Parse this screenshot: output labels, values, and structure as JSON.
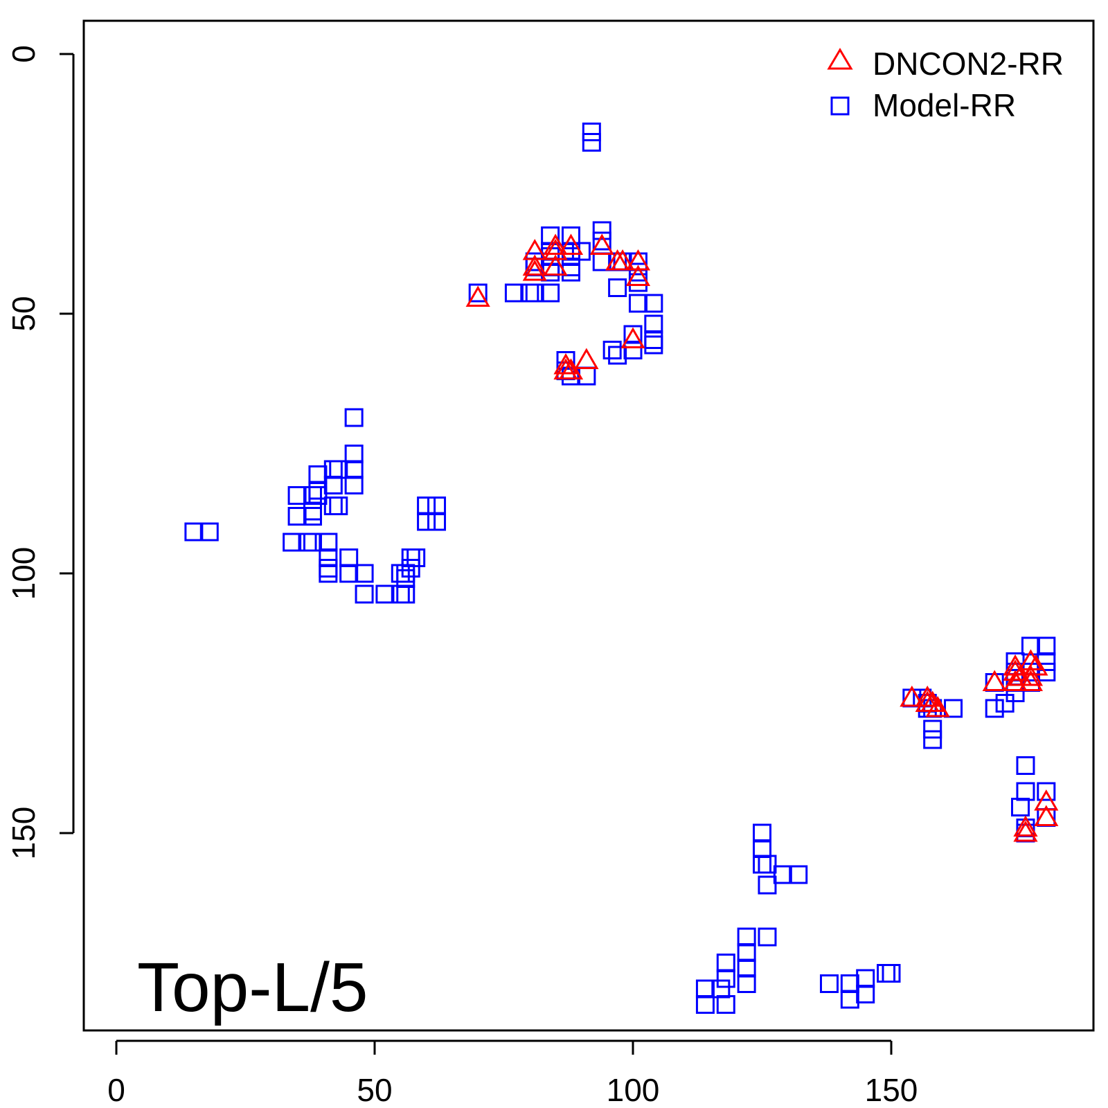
{
  "chart_data": {
    "type": "scatter",
    "title": "",
    "xlabel": "",
    "ylabel": "",
    "annotation": "Top-L/5",
    "xlim": [
      -6,
      189
    ],
    "ylim": [
      0,
      189
    ],
    "y_reversed": true,
    "x_ticks": [
      "0",
      "50",
      "100",
      "150"
    ],
    "x_tick_values": [
      0,
      50,
      100,
      150
    ],
    "y_ticks": [
      "0",
      "50",
      "100",
      "150"
    ],
    "y_tick_values": [
      0,
      50,
      100,
      150
    ],
    "legend_position": "top-right",
    "legend": [
      {
        "label": "DNCON2-RR",
        "marker": "triangle",
        "color": "#ff0000"
      },
      {
        "label": "Model-RR",
        "marker": "square",
        "color": "#0000ff"
      }
    ],
    "series": [
      {
        "name": "DNCON2-RR",
        "marker": "triangle",
        "color": "#ff0000",
        "points": [
          [
            70,
            47
          ],
          [
            81,
            38
          ],
          [
            81,
            41
          ],
          [
            81,
            42
          ],
          [
            85,
            37
          ],
          [
            85,
            38
          ],
          [
            85,
            41
          ],
          [
            88,
            37
          ],
          [
            94,
            37
          ],
          [
            97,
            40
          ],
          [
            98,
            40
          ],
          [
            101,
            40
          ],
          [
            101,
            43
          ],
          [
            100,
            55
          ],
          [
            87,
            60
          ],
          [
            87,
            61
          ],
          [
            88,
            61
          ],
          [
            91,
            59
          ],
          [
            154,
            124
          ],
          [
            157,
            124
          ],
          [
            157,
            125
          ],
          [
            158,
            125
          ],
          [
            159,
            126
          ],
          [
            170,
            121
          ],
          [
            174,
            118
          ],
          [
            174,
            119
          ],
          [
            174,
            121
          ],
          [
            175,
            120
          ],
          [
            177,
            117
          ],
          [
            178,
            118
          ],
          [
            177,
            120
          ],
          [
            177,
            121
          ],
          [
            176,
            149
          ],
          [
            176,
            150
          ],
          [
            180,
            144
          ],
          [
            180,
            147
          ]
        ]
      },
      {
        "name": "Model-RR",
        "marker": "square",
        "color": "#0000ff",
        "points": [
          [
            92,
            15
          ],
          [
            92,
            17
          ],
          [
            84,
            35
          ],
          [
            88,
            35
          ],
          [
            94,
            34
          ],
          [
            94,
            36
          ],
          [
            84,
            38
          ],
          [
            84,
            39
          ],
          [
            88,
            38
          ],
          [
            88,
            39
          ],
          [
            90,
            38
          ],
          [
            94,
            40
          ],
          [
            97,
            40
          ],
          [
            98,
            40
          ],
          [
            101,
            40
          ],
          [
            81,
            40
          ],
          [
            81,
            41
          ],
          [
            84,
            41
          ],
          [
            84,
            42
          ],
          [
            88,
            41
          ],
          [
            88,
            42
          ],
          [
            101,
            42
          ],
          [
            101,
            44
          ],
          [
            97,
            45
          ],
          [
            70,
            46
          ],
          [
            77,
            46
          ],
          [
            80,
            46
          ],
          [
            81,
            46
          ],
          [
            84,
            46
          ],
          [
            104,
            48
          ],
          [
            101,
            48
          ],
          [
            104,
            52
          ],
          [
            104,
            55
          ],
          [
            104,
            56
          ],
          [
            100,
            54
          ],
          [
            100,
            57
          ],
          [
            96,
            57
          ],
          [
            97,
            58
          ],
          [
            87,
            59
          ],
          [
            87,
            61
          ],
          [
            88,
            62
          ],
          [
            91,
            62
          ],
          [
            46,
            70
          ],
          [
            46,
            77
          ],
          [
            46,
            80
          ],
          [
            46,
            83
          ],
          [
            42,
            80
          ],
          [
            43,
            80
          ],
          [
            39,
            81
          ],
          [
            39,
            84
          ],
          [
            42,
            83
          ],
          [
            42,
            87
          ],
          [
            43,
            87
          ],
          [
            35,
            85
          ],
          [
            38,
            85
          ],
          [
            39,
            85
          ],
          [
            35,
            89
          ],
          [
            38,
            89
          ],
          [
            38,
            88
          ],
          [
            60,
            87
          ],
          [
            62,
            87
          ],
          [
            60,
            90
          ],
          [
            62,
            90
          ],
          [
            15,
            92
          ],
          [
            18,
            92
          ],
          [
            34,
            94
          ],
          [
            37,
            94
          ],
          [
            38,
            94
          ],
          [
            41,
            94
          ],
          [
            41,
            97
          ],
          [
            41,
            99
          ],
          [
            45,
            97
          ],
          [
            58,
            97
          ],
          [
            57,
            97
          ],
          [
            57,
            99
          ],
          [
            56,
            100
          ],
          [
            41,
            100
          ],
          [
            45,
            100
          ],
          [
            48,
            100
          ],
          [
            56,
            101
          ],
          [
            55,
            100
          ],
          [
            48,
            104
          ],
          [
            52,
            104
          ],
          [
            55,
            104
          ],
          [
            56,
            104
          ],
          [
            180,
            114
          ],
          [
            180,
            117
          ],
          [
            180,
            119
          ],
          [
            177,
            114
          ],
          [
            177,
            119
          ],
          [
            174,
            117
          ],
          [
            174,
            119
          ],
          [
            170,
            121
          ],
          [
            174,
            121
          ],
          [
            177,
            121
          ],
          [
            174,
            123
          ],
          [
            170,
            126
          ],
          [
            172,
            125
          ],
          [
            154,
            124
          ],
          [
            156,
            124
          ],
          [
            157,
            125
          ],
          [
            157,
            126
          ],
          [
            158,
            126
          ],
          [
            162,
            126
          ],
          [
            158,
            130
          ],
          [
            158,
            132
          ],
          [
            176,
            137
          ],
          [
            176,
            142
          ],
          [
            175,
            145
          ],
          [
            180,
            142
          ],
          [
            176,
            149
          ],
          [
            176,
            150
          ],
          [
            180,
            147
          ],
          [
            125,
            150
          ],
          [
            125,
            153
          ],
          [
            125,
            156
          ],
          [
            126,
            156
          ],
          [
            126,
            160
          ],
          [
            129,
            158
          ],
          [
            132,
            158
          ],
          [
            122,
            170
          ],
          [
            126,
            170
          ],
          [
            122,
            173
          ],
          [
            118,
            175
          ],
          [
            118,
            178
          ],
          [
            122,
            176
          ],
          [
            122,
            179
          ],
          [
            114,
            180
          ],
          [
            114,
            183
          ],
          [
            117,
            180
          ],
          [
            118,
            183
          ],
          [
            138,
            179
          ],
          [
            142,
            179
          ],
          [
            142,
            182
          ],
          [
            145,
            181
          ],
          [
            145,
            178
          ],
          [
            149,
            177
          ],
          [
            150,
            177
          ]
        ]
      }
    ]
  }
}
